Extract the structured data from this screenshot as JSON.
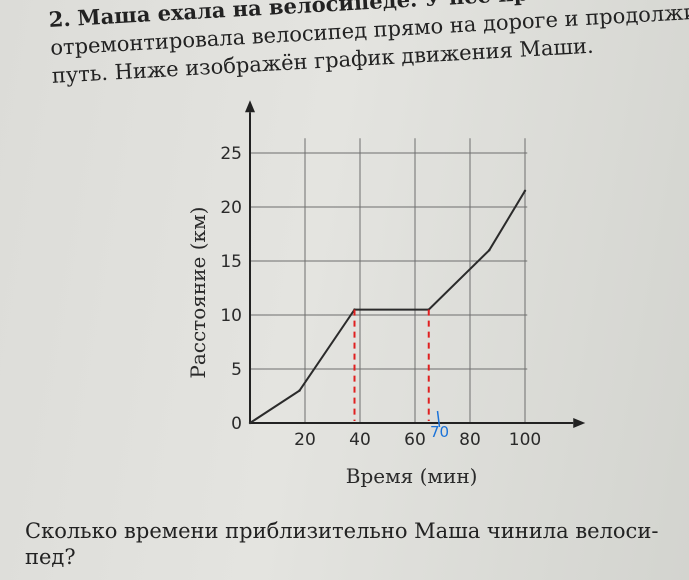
{
  "problem": {
    "number": "2.",
    "line1": "Маша ехала на велосипеде. У нее прокололась шина. Он",
    "line2": "отремонтировала велосипед прямо на дороге и продолжи",
    "line3": "путь. Ниже изображён график движения Маши."
  },
  "question": {
    "line1": "Сколько времени приблизительно Маша чинила велоси-",
    "line2": "пед?"
  },
  "chart_data": {
    "type": "line",
    "xlabel": "Время (мин)",
    "ylabel": "Расстояние (км)",
    "x_ticks": [
      20,
      40,
      60,
      80,
      100
    ],
    "y_ticks": [
      0,
      5,
      10,
      15,
      20,
      25
    ],
    "xlim": [
      0,
      103
    ],
    "ylim": [
      0,
      26
    ],
    "grid": true,
    "series": [
      {
        "x": [
          0,
          18,
          38,
          65,
          87,
          100
        ],
        "y": [
          0,
          3,
          10.5,
          10.5,
          16,
          21.5
        ],
        "color": "#2b2b2b"
      }
    ],
    "markers": [
      {
        "x": 38,
        "y": 10.5,
        "style": "dashed",
        "color": "#e02020"
      },
      {
        "x": 65,
        "y": 10.5,
        "style": "dashed",
        "color": "#e02020"
      }
    ],
    "annotation": {
      "text": "70",
      "x": 70,
      "color": "#1a72d9"
    }
  }
}
